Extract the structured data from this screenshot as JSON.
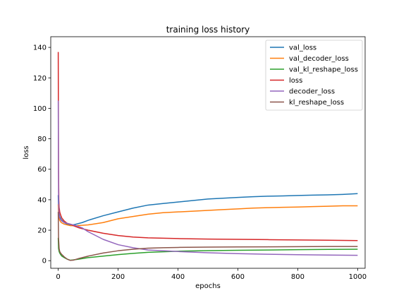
{
  "chart_data": {
    "type": "line",
    "title": "training loss history",
    "xlabel": "epochs",
    "ylabel": "loss",
    "xlim": [
      -25,
      1025
    ],
    "ylim": [
      -5,
      147
    ],
    "xticks": [
      0,
      200,
      400,
      600,
      800,
      1000
    ],
    "yticks": [
      0,
      20,
      40,
      60,
      80,
      100,
      120,
      140
    ],
    "grid": false,
    "legend_position": "top-right",
    "series": [
      {
        "name": "val_loss",
        "color": "#1f77b4",
        "x": [
          0,
          1,
          3,
          5,
          10,
          20,
          30,
          40,
          50,
          60,
          80,
          100,
          150,
          200,
          250,
          300,
          350,
          400,
          450,
          500,
          550,
          600,
          650,
          700,
          750,
          800,
          850,
          900,
          950,
          1000
        ],
        "y": [
          43,
          34,
          31,
          29,
          27,
          25,
          24,
          23.5,
          23.5,
          24,
          25,
          26.5,
          29.5,
          32,
          34.5,
          36.5,
          37.5,
          38.5,
          39.5,
          40.5,
          41,
          41.5,
          42,
          42.3,
          42.5,
          42.8,
          43,
          43.2,
          43.5,
          44
        ]
      },
      {
        "name": "val_decoder_loss",
        "color": "#ff7f0e",
        "x": [
          0,
          1,
          3,
          5,
          10,
          20,
          30,
          40,
          50,
          60,
          80,
          100,
          150,
          200,
          250,
          300,
          350,
          400,
          450,
          500,
          550,
          600,
          650,
          700,
          750,
          800,
          850,
          900,
          950,
          1000
        ],
        "y": [
          37,
          31,
          28,
          26.5,
          25,
          24,
          23.5,
          23,
          23,
          23,
          23.2,
          23.5,
          25,
          27.5,
          29,
          30.5,
          31.5,
          32,
          32.5,
          33,
          33.5,
          34,
          34.5,
          34.8,
          35,
          35.2,
          35.5,
          35.7,
          36,
          36
        ]
      },
      {
        "name": "val_kl_reshape_loss",
        "color": "#2ca02c",
        "x": [
          0,
          1,
          3,
          5,
          8,
          12,
          20,
          30,
          40,
          50,
          70,
          100,
          150,
          200,
          250,
          300,
          400,
          500,
          600,
          700,
          800,
          900,
          1000
        ],
        "y": [
          15,
          8,
          6,
          5,
          4,
          3,
          2,
          1,
          0.3,
          0.5,
          1,
          2,
          3,
          4,
          4.8,
          5.5,
          6.2,
          6.6,
          6.8,
          7,
          7.2,
          7.4,
          7.5
        ]
      },
      {
        "name": "loss",
        "color": "#d62728",
        "x": [
          0,
          1,
          2,
          3,
          5,
          8,
          12,
          20,
          30,
          40,
          50,
          70,
          100,
          150,
          200,
          250,
          300,
          400,
          500,
          600,
          700,
          800,
          900,
          1000
        ],
        "y": [
          137,
          60,
          40,
          35,
          32,
          30,
          28,
          26,
          24.5,
          24,
          23,
          21.5,
          20,
          18,
          16.5,
          15.5,
          15,
          14.5,
          14.2,
          14,
          13.8,
          13.6,
          13.4,
          13.2
        ]
      },
      {
        "name": "decoder_loss",
        "color": "#9467bd",
        "x": [
          0,
          1,
          2,
          3,
          5,
          8,
          12,
          20,
          30,
          40,
          60,
          80,
          100,
          150,
          200,
          250,
          300,
          350,
          400,
          500,
          600,
          700,
          800,
          900,
          1000
        ],
        "y": [
          105,
          45,
          33,
          30,
          28,
          27,
          26,
          25,
          24.5,
          24,
          23,
          21.5,
          19,
          14,
          10.5,
          8.5,
          7,
          6.5,
          6,
          5.2,
          4.6,
          4.2,
          3.9,
          3.7,
          3.5
        ]
      },
      {
        "name": "kl_reshape_loss",
        "color": "#8c564b",
        "x": [
          0,
          1,
          3,
          5,
          8,
          12,
          20,
          30,
          40,
          50,
          70,
          100,
          150,
          200,
          250,
          300,
          350,
          400,
          500,
          600,
          700,
          800,
          900,
          1000
        ],
        "y": [
          32,
          15,
          8,
          6,
          5,
          4,
          2.5,
          1,
          0.2,
          0.3,
          1.5,
          3,
          5,
          6.5,
          7.5,
          8.2,
          8.5,
          8.7,
          8.9,
          9,
          9.1,
          9.2,
          9.3,
          9.3
        ]
      }
    ]
  }
}
